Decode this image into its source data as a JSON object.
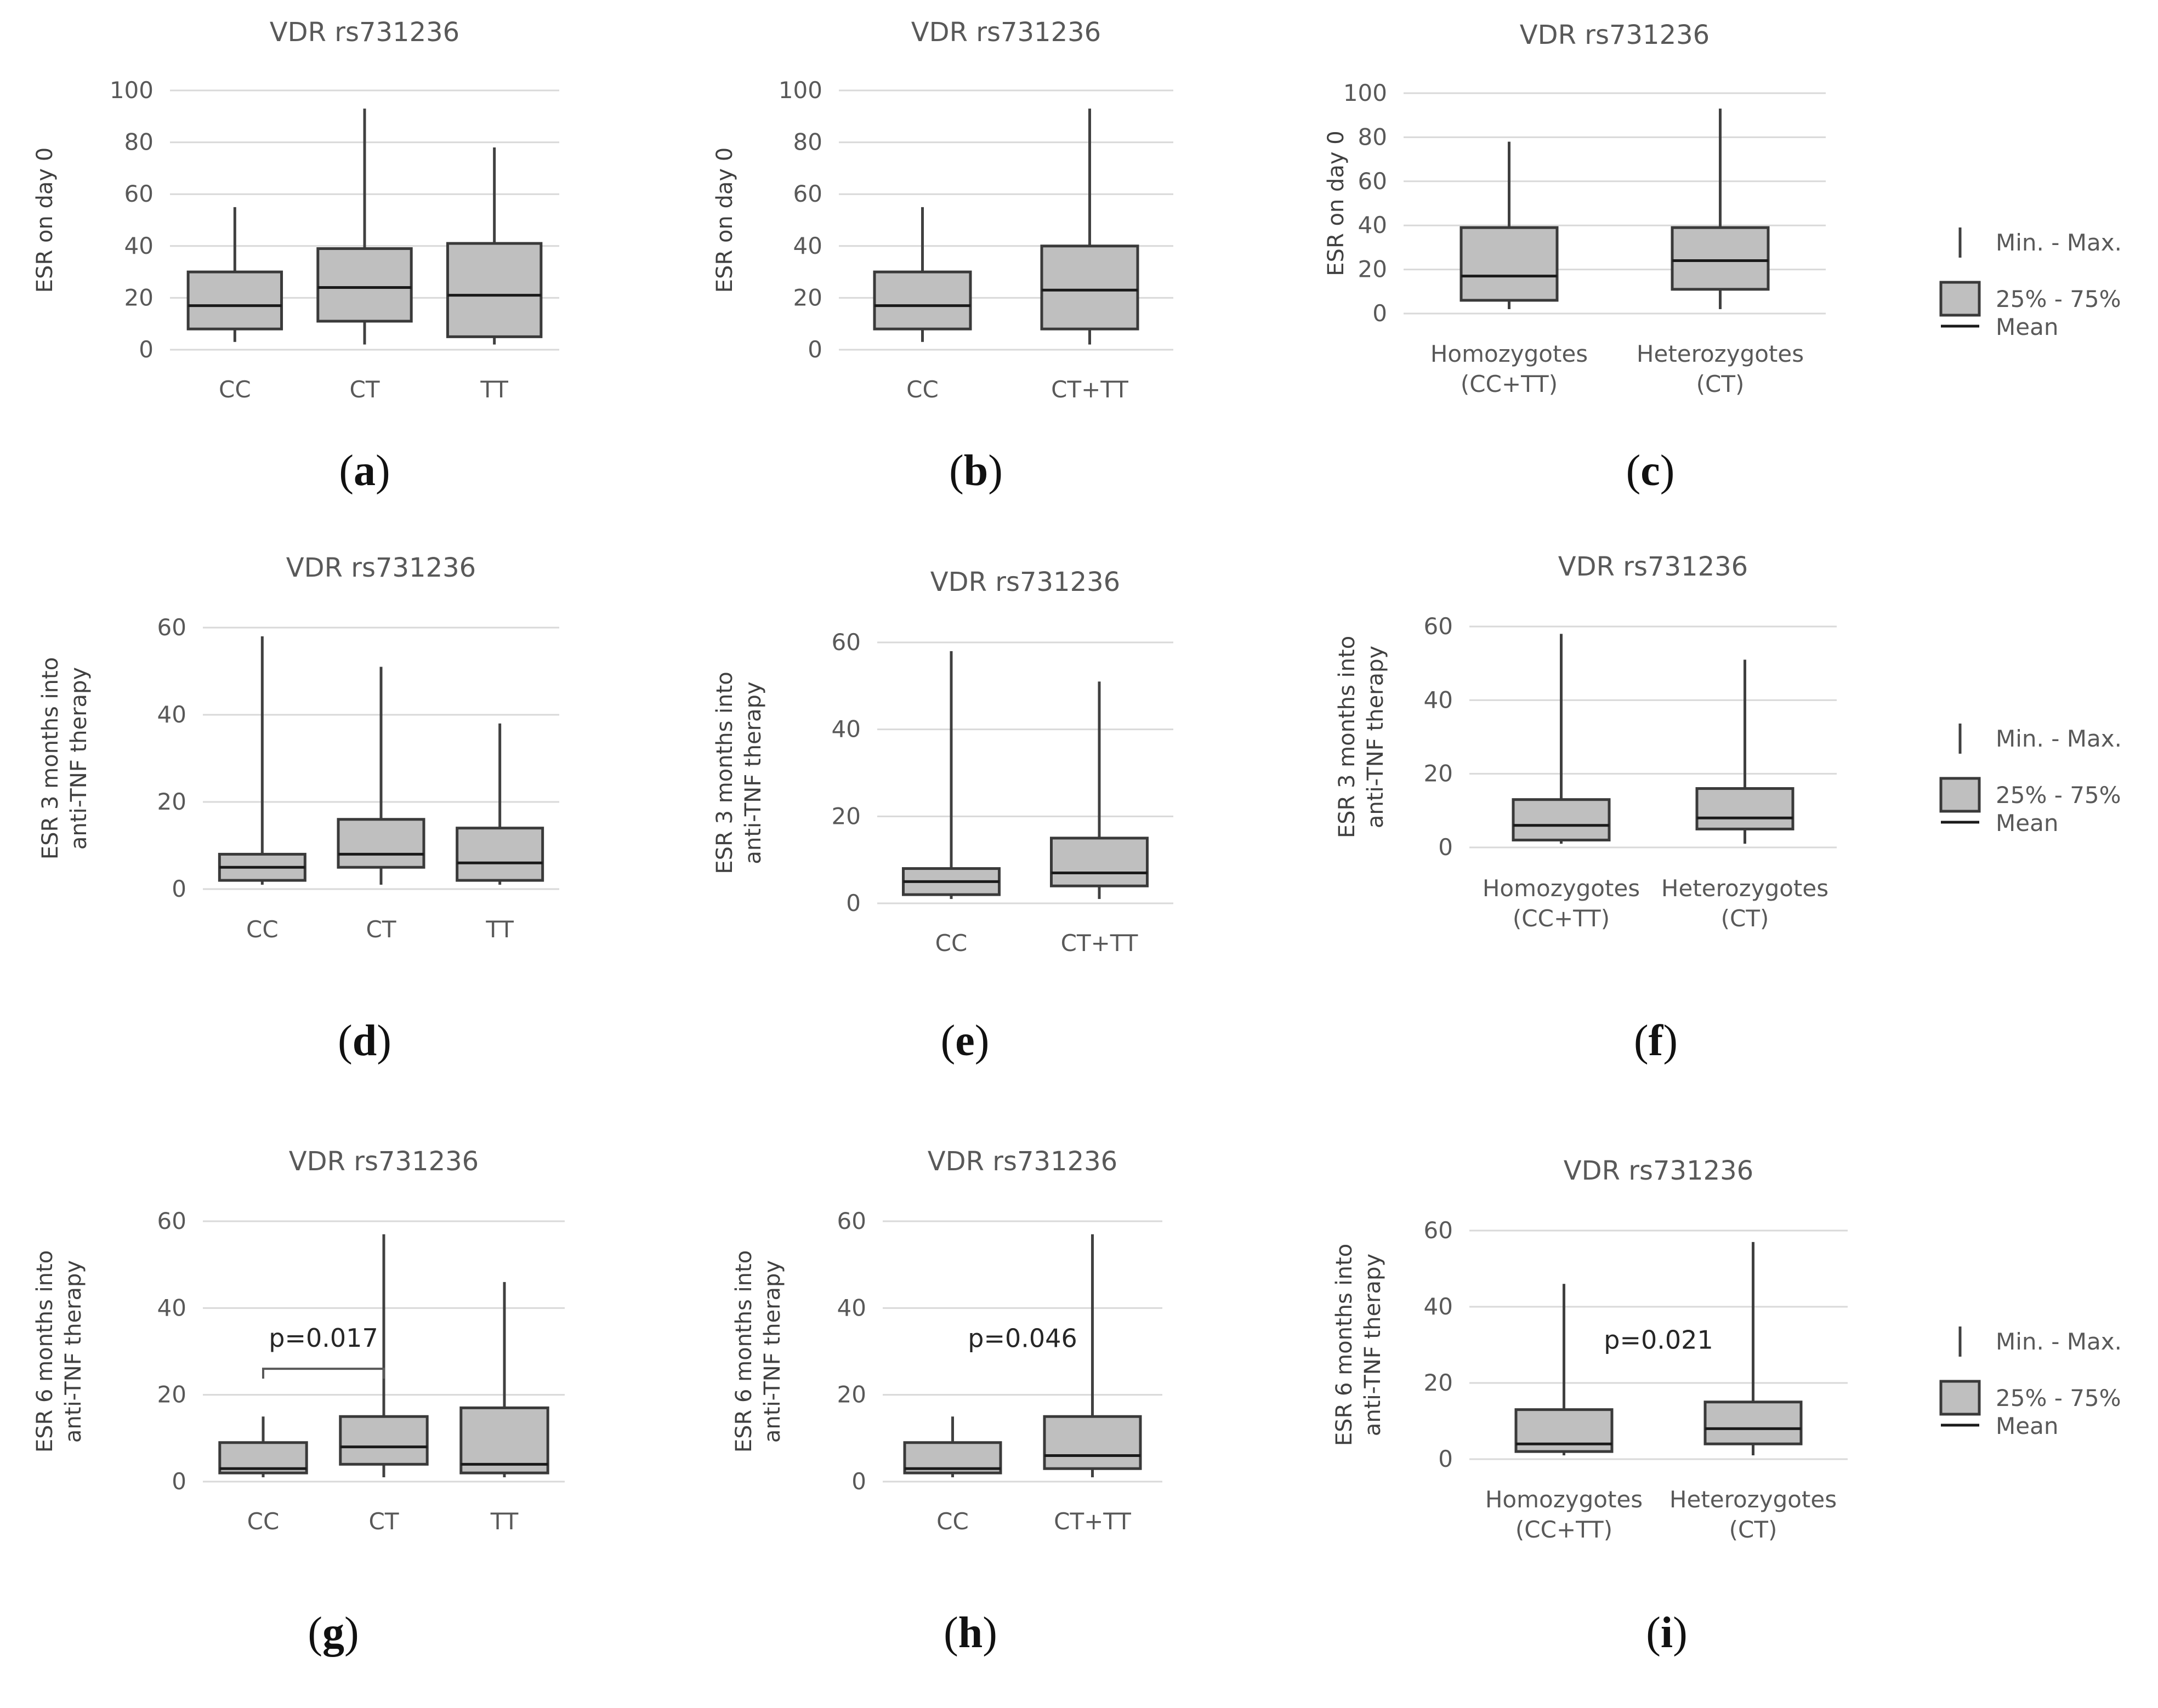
{
  "chart_data": [
    {
      "type": "box",
      "panel": "a",
      "title": "VDR rs731236",
      "ylabel": "ESR on day 0",
      "ylim": [
        0,
        100
      ],
      "yticks": [
        0,
        20,
        40,
        60,
        80,
        100
      ],
      "categories": [
        "CC",
        "CT",
        "TT"
      ],
      "boxes": [
        {
          "min": 3,
          "q1": 8,
          "median": 17,
          "q3": 30,
          "max": 55
        },
        {
          "min": 2,
          "q1": 11,
          "median": 24,
          "q3": 39,
          "max": 93
        },
        {
          "min": 2,
          "q1": 5,
          "median": 21,
          "q3": 41,
          "max": 78
        }
      ]
    },
    {
      "type": "box",
      "panel": "b",
      "title": "VDR rs731236",
      "ylabel": "ESR on day 0",
      "ylim": [
        0,
        100
      ],
      "yticks": [
        0,
        20,
        40,
        60,
        80,
        100
      ],
      "categories": [
        "CC",
        "CT+TT"
      ],
      "boxes": [
        {
          "min": 3,
          "q1": 8,
          "median": 17,
          "q3": 30,
          "max": 55
        },
        {
          "min": 2,
          "q1": 8,
          "median": 23,
          "q3": 40,
          "max": 93
        }
      ]
    },
    {
      "type": "box",
      "panel": "c",
      "title": "VDR rs731236",
      "ylabel": "ESR on day 0",
      "ylim": [
        0,
        100
      ],
      "yticks": [
        0,
        20,
        40,
        60,
        80,
        100
      ],
      "categories": [
        "Homozygotes|(CC+TT)",
        "Heterozygotes|(CT)"
      ],
      "boxes": [
        {
          "min": 2,
          "q1": 6,
          "median": 17,
          "q3": 39,
          "max": 78
        },
        {
          "min": 2,
          "q1": 11,
          "median": 24,
          "q3": 39,
          "max": 93
        }
      ]
    },
    {
      "type": "box",
      "panel": "d",
      "title": "VDR rs731236",
      "ylabel": "ESR 3 months into|anti-TNF therapy",
      "ylim": [
        0,
        60
      ],
      "yticks": [
        0,
        20,
        40,
        60
      ],
      "categories": [
        "CC",
        "CT",
        "TT"
      ],
      "boxes": [
        {
          "min": 1,
          "q1": 2,
          "median": 5,
          "q3": 8,
          "max": 58
        },
        {
          "min": 1,
          "q1": 5,
          "median": 8,
          "q3": 16,
          "max": 51
        },
        {
          "min": 1,
          "q1": 2,
          "median": 6,
          "q3": 14,
          "max": 38
        }
      ]
    },
    {
      "type": "box",
      "panel": "e",
      "title": "VDR rs731236",
      "ylabel": "ESR 3 months into|anti-TNF therapy",
      "ylim": [
        0,
        60
      ],
      "yticks": [
        0,
        20,
        40,
        60
      ],
      "categories": [
        "CC",
        "CT+TT"
      ],
      "boxes": [
        {
          "min": 1,
          "q1": 2,
          "median": 5,
          "q3": 8,
          "max": 58
        },
        {
          "min": 1,
          "q1": 4,
          "median": 7,
          "q3": 15,
          "max": 51
        }
      ]
    },
    {
      "type": "box",
      "panel": "f",
      "title": "VDR rs731236",
      "ylabel": "ESR 3 months into|anti-TNF therapy",
      "ylim": [
        0,
        60
      ],
      "yticks": [
        0,
        20,
        40,
        60
      ],
      "categories": [
        "Homozygotes|(CC+TT)",
        "Heterozygotes|(CT)"
      ],
      "boxes": [
        {
          "min": 1,
          "q1": 2,
          "median": 6,
          "q3": 13,
          "max": 58
        },
        {
          "min": 1,
          "q1": 5,
          "median": 8,
          "q3": 16,
          "max": 51
        }
      ]
    },
    {
      "type": "box",
      "panel": "g",
      "title": "VDR rs731236",
      "ylabel": "ESR 6 months into|anti-TNF therapy",
      "ylim": [
        0,
        60
      ],
      "yticks": [
        0,
        20,
        40,
        60
      ],
      "categories": [
        "CC",
        "CT",
        "TT"
      ],
      "boxes": [
        {
          "min": 1,
          "q1": 2,
          "median": 3,
          "q3": 9,
          "max": 15
        },
        {
          "min": 1,
          "q1": 4,
          "median": 8,
          "q3": 15,
          "max": 57
        },
        {
          "min": 1,
          "q1": 2,
          "median": 4,
          "q3": 17,
          "max": 46
        }
      ],
      "annotation": {
        "text": "p=0.017",
        "bracket": [
          0,
          1
        ],
        "level": 26
      }
    },
    {
      "type": "box",
      "panel": "h",
      "title": "VDR rs731236",
      "ylabel": "ESR 6 months into|anti-TNF therapy",
      "ylim": [
        0,
        60
      ],
      "yticks": [
        0,
        20,
        40,
        60
      ],
      "categories": [
        "CC",
        "CT+TT"
      ],
      "boxes": [
        {
          "min": 1,
          "q1": 2,
          "median": 3,
          "q3": 9,
          "max": 15
        },
        {
          "min": 1,
          "q1": 3,
          "median": 6,
          "q3": 15,
          "max": 57
        }
      ],
      "annotation": {
        "text": "p=0.046",
        "bracket": null,
        "level": 31
      }
    },
    {
      "type": "box",
      "panel": "i",
      "title": "VDR rs731236",
      "ylabel": "ESR 6 months into|anti-TNF therapy",
      "ylim": [
        0,
        60
      ],
      "yticks": [
        0,
        20,
        40,
        60
      ],
      "categories": [
        "Homozygotes|(CC+TT)",
        "Heterozygotes|(CT)"
      ],
      "boxes": [
        {
          "min": 1,
          "q1": 2,
          "median": 4,
          "q3": 13,
          "max": 46
        },
        {
          "min": 1,
          "q1": 4,
          "median": 8,
          "q3": 15,
          "max": 57
        }
      ],
      "annotation": {
        "text": "p=0.021",
        "bracket": null,
        "level": 29
      }
    }
  ],
  "legend": {
    "items": [
      "Min. - Max.",
      "25% - 75%",
      "Mean"
    ]
  },
  "panel_labels": [
    "a",
    "b",
    "c",
    "d",
    "e",
    "f",
    "g",
    "h",
    "i"
  ]
}
